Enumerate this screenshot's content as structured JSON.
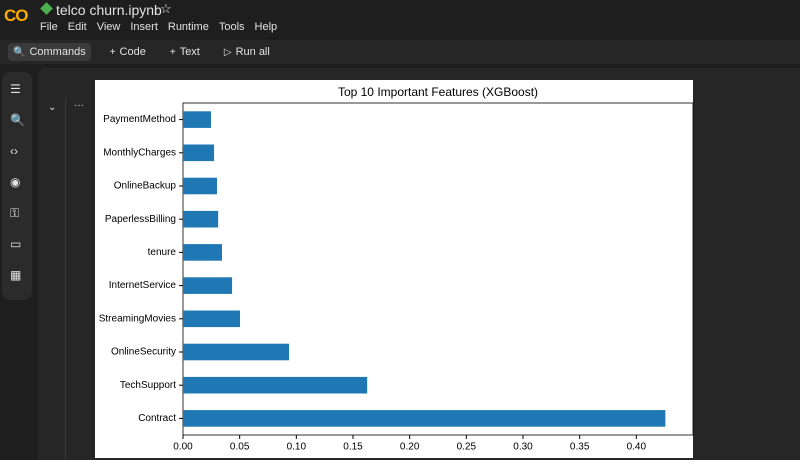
{
  "app": {
    "logo": "CO",
    "file_name": "telco churn.ipynb",
    "menu": [
      "File",
      "Edit",
      "View",
      "Insert",
      "Runtime",
      "Tools",
      "Help"
    ],
    "toolbar": [
      "Commands",
      "Code",
      "Text",
      "Run all"
    ]
  },
  "chart_data": {
    "type": "barh",
    "title": "Top 10 Important Features (XGBoost)",
    "categories": [
      "PaymentMethod",
      "MonthlyCharges",
      "OnlineBackup",
      "PaperlessBilling",
      "tenure",
      "InternetService",
      "StreamingMovies",
      "OnlineSecurity",
      "TechSupport",
      "Contract"
    ],
    "values": [
      0.0247,
      0.0274,
      0.03,
      0.031,
      0.0344,
      0.0433,
      0.0503,
      0.0936,
      0.1625,
      0.4256
    ],
    "color": "#1f77b4",
    "xlim": [
      0,
      0.45
    ],
    "xticks": [
      {
        "value": 0,
        "label": "0.00"
      },
      {
        "value": 0.05,
        "label": "0.05"
      },
      {
        "value": 0.1,
        "label": "0.10"
      },
      {
        "value": 0.15,
        "label": "0.15"
      },
      {
        "value": 0.2,
        "label": "0.20"
      },
      {
        "value": 0.25,
        "label": "0.25"
      },
      {
        "value": 0.3,
        "label": "0.30"
      },
      {
        "value": 0.35,
        "label": "0.35"
      },
      {
        "value": 0.4,
        "label": "0.40"
      }
    ],
    "grid": false
  }
}
